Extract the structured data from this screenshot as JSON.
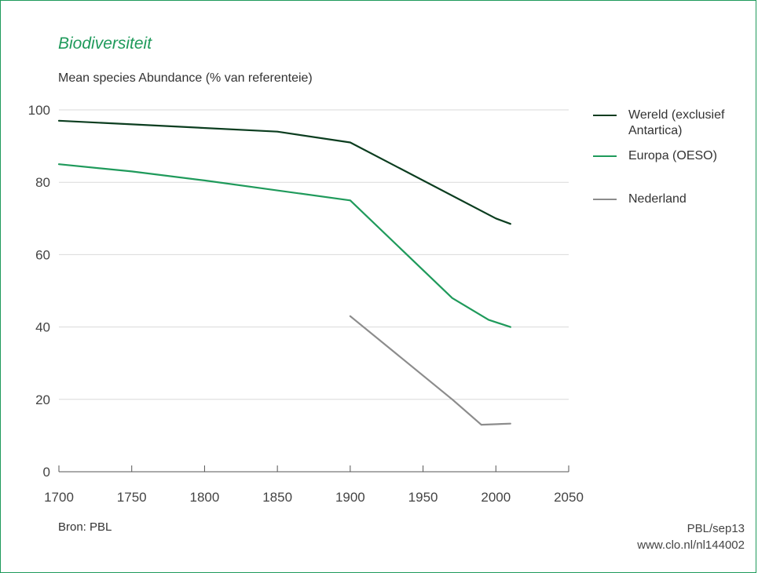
{
  "title": "Biodiversiteit",
  "subtitle": "Mean species Abundance (% van referenteie)",
  "footer": {
    "source": "Bron: PBL",
    "code": "PBL/sep13",
    "url": "www.clo.nl/nl144002"
  },
  "colors": {
    "accent": "#1f9a5b",
    "wereld": "#0b3d1f",
    "europa": "#1f9a5b",
    "nederland": "#8c8c8c"
  },
  "chart_data": {
    "type": "line",
    "title": "Biodiversiteit",
    "ylabel": "Mean species Abundance (% van referenteie)",
    "xlim": [
      1700,
      2050
    ],
    "ylim": [
      0,
      100
    ],
    "xticks": [
      "1700",
      "1750",
      "1800",
      "1850",
      "1900",
      "1950",
      "2000",
      "2050"
    ],
    "yticks": [
      "0",
      "20",
      "40",
      "60",
      "80",
      "100"
    ],
    "grid": "horizontal",
    "legend": "right",
    "series": [
      {
        "key": "wereld",
        "name": "Wereld (exclusief Antartica)",
        "color": "#0b3d1f",
        "x": [
          1700,
          1750,
          1850,
          1900,
          2000,
          2010
        ],
        "y": [
          97,
          96,
          94,
          91,
          70,
          68.5
        ]
      },
      {
        "key": "europa",
        "name": "Europa (OESO)",
        "color": "#1f9a5b",
        "x": [
          1700,
          1750,
          1800,
          1900,
          1970,
          1995,
          2010
        ],
        "y": [
          85,
          83,
          80.5,
          75,
          48,
          42,
          40
        ]
      },
      {
        "key": "nederland",
        "name": "Nederland",
        "color": "#8c8c8c",
        "x": [
          1900,
          1970,
          1990,
          2010
        ],
        "y": [
          43,
          20,
          13,
          13.3
        ]
      }
    ]
  }
}
